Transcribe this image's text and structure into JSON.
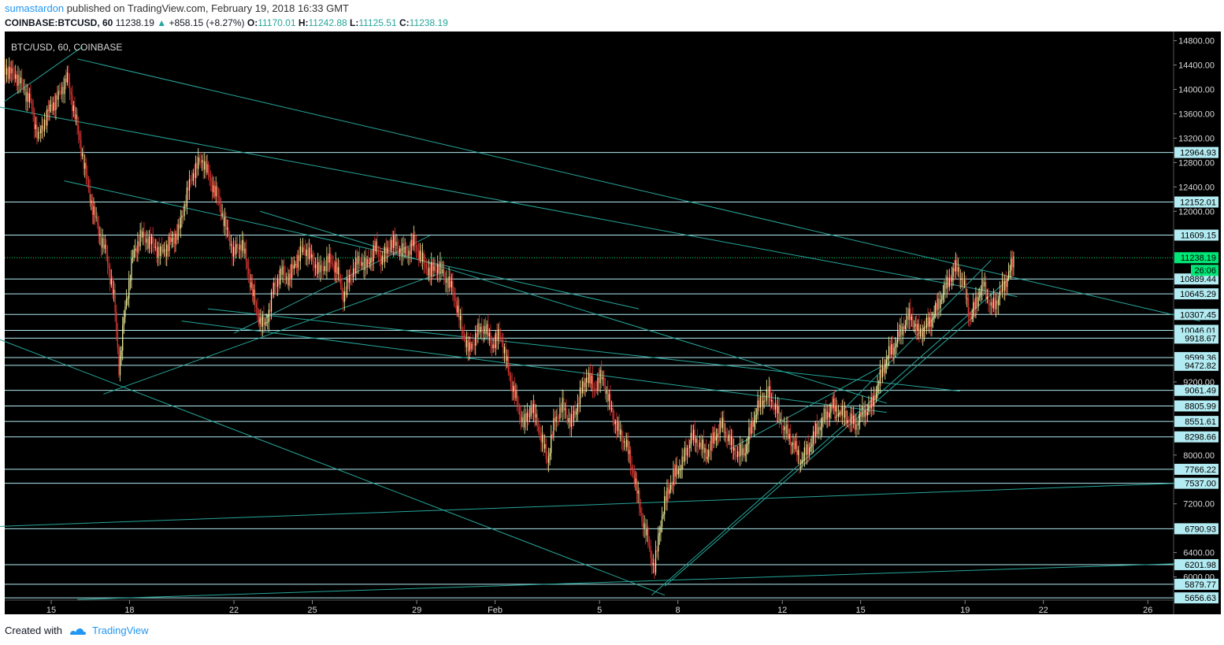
{
  "header": {
    "author": "sumastardon",
    "published_text": "published on TradingView.com, February 19, 2018 16:33 GMT",
    "symbol": "COINBASE:BTCUSD, 60",
    "last": "11238.19",
    "change": "+858.15 (+8.27%)",
    "open_label": "O:",
    "open": "11170.01",
    "high_label": "H:",
    "high": "11242.88",
    "low_label": "L:",
    "low": "11125.51",
    "close_label": "C:",
    "close": "11238.19"
  },
  "chart_title": "BTC/USD, 60, COINBASE",
  "footer": {
    "created_with": "Created with",
    "brand": "TradingView"
  },
  "colors": {
    "background": "#000000",
    "line": "#26a69a",
    "hline": "#b2ebf2",
    "up_candle": "#f5f5a0",
    "down_candle": "#e53935",
    "price_marker": "#00e676",
    "label_bg": "#b2ebf2"
  },
  "chart_data": {
    "type": "candlestick",
    "title": "BTC/USD, 60, COINBASE",
    "ylim": [
      5620,
      14950
    ],
    "x_ticks": [
      {
        "label": "15",
        "day": 15
      },
      {
        "label": "18",
        "day": 18
      },
      {
        "label": "22",
        "day": 22
      },
      {
        "label": "25",
        "day": 25
      },
      {
        "label": "29",
        "day": 29
      },
      {
        "label": "Feb",
        "day": 32
      },
      {
        "label": "5",
        "day": 36
      },
      {
        "label": "8",
        "day": 39
      },
      {
        "label": "12",
        "day": 43
      },
      {
        "label": "15",
        "day": 46
      },
      {
        "label": "19",
        "day": 50
      },
      {
        "label": "22",
        "day": 53
      },
      {
        "label": "26",
        "day": 57
      }
    ],
    "y_ticks": [
      "14800.00",
      "14400.00",
      "14000.00",
      "13600.00",
      "13200.00",
      "12800.00",
      "12400.00",
      "12000.00",
      "9200.00",
      "8000.00",
      "7200.00",
      "6400.00",
      "6000.00"
    ],
    "horizontal_levels": [
      "12964.93",
      "12152.01",
      "11609.15",
      "10889.44",
      "10645.29",
      "10307.45",
      "10046.01",
      "9918.67",
      "9599.36",
      "9472.82",
      "9061.49",
      "8805.99",
      "8551.61",
      "8298.66",
      "7766.22",
      "7537.00",
      "6790.93",
      "6201.98",
      "5879.77",
      "5656.63"
    ],
    "current_price": "11238.19",
    "countdown": "26:06",
    "price_path": [
      [
        13.2,
        14350
      ],
      [
        13.7,
        14200
      ],
      [
        14.2,
        13800
      ],
      [
        14.5,
        13200
      ],
      [
        14.9,
        13650
      ],
      [
        15.3,
        13900
      ],
      [
        15.6,
        14200
      ],
      [
        15.9,
        13600
      ],
      [
        16.2,
        12900
      ],
      [
        16.5,
        12200
      ],
      [
        16.8,
        11700
      ],
      [
        17.1,
        11300
      ],
      [
        17.4,
        10600
      ],
      [
        17.6,
        9400
      ],
      [
        17.8,
        10300
      ],
      [
        18.1,
        11200
      ],
      [
        18.4,
        11600
      ],
      [
        18.8,
        11500
      ],
      [
        19.2,
        11300
      ],
      [
        19.6,
        11500
      ],
      [
        19.9,
        11700
      ],
      [
        20.2,
        12300
      ],
      [
        20.5,
        12700
      ],
      [
        20.8,
        12850
      ],
      [
        21.1,
        12500
      ],
      [
        21.4,
        12200
      ],
      [
        21.7,
        11700
      ],
      [
        22.0,
        11300
      ],
      [
        22.3,
        11500
      ],
      [
        22.6,
        10900
      ],
      [
        22.9,
        10300
      ],
      [
        23.2,
        10100
      ],
      [
        23.5,
        10700
      ],
      [
        23.8,
        11000
      ],
      [
        24.1,
        10900
      ],
      [
        24.4,
        11200
      ],
      [
        24.7,
        11400
      ],
      [
        25.0,
        11200
      ],
      [
        25.3,
        11000
      ],
      [
        25.6,
        11200
      ],
      [
        25.9,
        11100
      ],
      [
        26.2,
        10600
      ],
      [
        26.5,
        11000
      ],
      [
        26.8,
        11200
      ],
      [
        27.1,
        11100
      ],
      [
        27.4,
        11400
      ],
      [
        27.7,
        11200
      ],
      [
        28.0,
        11500
      ],
      [
        28.3,
        11400
      ],
      [
        28.6,
        11300
      ],
      [
        28.9,
        11500
      ],
      [
        29.2,
        11200
      ],
      [
        29.5,
        11000
      ],
      [
        29.8,
        11100
      ],
      [
        30.1,
        10900
      ],
      [
        30.4,
        10700
      ],
      [
        30.7,
        10100
      ],
      [
        31.0,
        9700
      ],
      [
        31.3,
        10000
      ],
      [
        31.6,
        10100
      ],
      [
        31.9,
        9800
      ],
      [
        32.2,
        10000
      ],
      [
        32.5,
        9400
      ],
      [
        32.8,
        8900
      ],
      [
        33.1,
        8500
      ],
      [
        33.4,
        8800
      ],
      [
        33.7,
        8400
      ],
      [
        34.0,
        7900
      ],
      [
        34.3,
        8600
      ],
      [
        34.6,
        8800
      ],
      [
        34.9,
        8500
      ],
      [
        35.2,
        8900
      ],
      [
        35.5,
        9300
      ],
      [
        35.8,
        9100
      ],
      [
        36.1,
        9300
      ],
      [
        36.4,
        8800
      ],
      [
        36.7,
        8400
      ],
      [
        37.0,
        8200
      ],
      [
        37.3,
        7700
      ],
      [
        37.6,
        7000
      ],
      [
        37.9,
        6500
      ],
      [
        38.1,
        6100
      ],
      [
        38.3,
        6800
      ],
      [
        38.6,
        7400
      ],
      [
        38.9,
        7700
      ],
      [
        39.2,
        7900
      ],
      [
        39.5,
        8300
      ],
      [
        39.8,
        8200
      ],
      [
        40.1,
        8000
      ],
      [
        40.4,
        8300
      ],
      [
        40.7,
        8500
      ],
      [
        41.0,
        8200
      ],
      [
        41.3,
        8000
      ],
      [
        41.6,
        8100
      ],
      [
        41.9,
        8600
      ],
      [
        42.2,
        8900
      ],
      [
        42.5,
        9000
      ],
      [
        42.8,
        8700
      ],
      [
        43.1,
        8400
      ],
      [
        43.4,
        8200
      ],
      [
        43.7,
        7900
      ],
      [
        44.0,
        8100
      ],
      [
        44.3,
        8400
      ],
      [
        44.6,
        8600
      ],
      [
        44.9,
        8800
      ],
      [
        45.2,
        8700
      ],
      [
        45.5,
        8600
      ],
      [
        45.8,
        8500
      ],
      [
        46.1,
        8700
      ],
      [
        46.4,
        8800
      ],
      [
        46.7,
        9200
      ],
      [
        47.0,
        9600
      ],
      [
        47.3,
        9800
      ],
      [
        47.6,
        10100
      ],
      [
        47.9,
        10300
      ],
      [
        48.2,
        10000
      ],
      [
        48.5,
        10100
      ],
      [
        48.8,
        10300
      ],
      [
        49.1,
        10600
      ],
      [
        49.4,
        10900
      ],
      [
        49.7,
        11100
      ],
      [
        50.0,
        10700
      ],
      [
        50.2,
        10200
      ],
      [
        50.4,
        10500
      ],
      [
        50.7,
        10800
      ],
      [
        51.0,
        10400
      ],
      [
        51.3,
        10600
      ],
      [
        51.6,
        10900
      ],
      [
        51.9,
        11240
      ]
    ],
    "trend_lines": [
      [
        [
          5,
          14350
        ],
        [
          52,
          10600
        ]
      ],
      [
        [
          16,
          14500
        ],
        [
          59,
          10200
        ]
      ],
      [
        [
          15.5,
          12500
        ],
        [
          37.5,
          10400
        ]
      ],
      [
        [
          23,
          12000
        ],
        [
          47,
          8850
        ]
      ],
      [
        [
          13,
          9900
        ],
        [
          38.5,
          5700
        ]
      ],
      [
        [
          16,
          5630
        ],
        [
          59,
          6230
        ]
      ],
      [
        [
          13,
          6830
        ],
        [
          59,
          7550
        ]
      ],
      [
        [
          20,
          10200
        ],
        [
          47,
          8700
        ]
      ],
      [
        [
          17,
          9000
        ],
        [
          30,
          11000
        ]
      ],
      [
        [
          38.5,
          5850
        ],
        [
          50.4,
          10300
        ]
      ],
      [
        [
          38,
          5700
        ],
        [
          51.7,
          10900
        ]
      ],
      [
        [
          13.2,
          13800
        ],
        [
          16.2,
          14700
        ]
      ],
      [
        [
          22,
          10000
        ],
        [
          29.5,
          11600
        ]
      ],
      [
        [
          41,
          8100
        ],
        [
          47,
          9500
        ]
      ],
      [
        [
          45,
          8600
        ],
        [
          51,
          11200
        ]
      ],
      [
        [
          21,
          10400
        ],
        [
          49.8,
          9050
        ]
      ]
    ]
  }
}
